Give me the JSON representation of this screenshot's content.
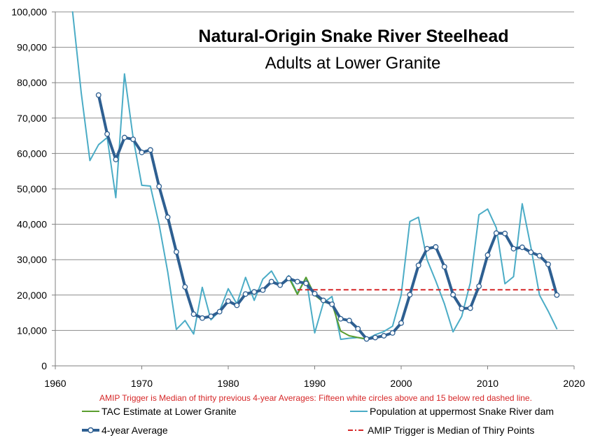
{
  "chart_data": {
    "type": "line",
    "title": "Natural-Origin Snake River Steelhead",
    "subtitle": "Adults at Lower Granite",
    "note": "AMIP Trigger is Median of thirty previous 4-year Averages:  Fifteen white circles above and 15 below red dashed line.",
    "xlim": [
      1960,
      2020
    ],
    "ylim": [
      0,
      100000
    ],
    "x_ticks": [
      1960,
      1970,
      1980,
      1990,
      2000,
      2010,
      2020
    ],
    "y_ticks": [
      0,
      10000,
      20000,
      30000,
      40000,
      50000,
      60000,
      70000,
      80000,
      90000,
      100000
    ],
    "x_tick_labels": [
      "1960",
      "1970",
      "1980",
      "1990",
      "2000",
      "2010",
      "2020"
    ],
    "y_tick_labels": [
      "0",
      "10,000",
      "20,000",
      "30,000",
      "40,000",
      "50,000",
      "60,000",
      "70,000",
      "80,000",
      "90,000",
      "100,000"
    ],
    "grid": "horizontal",
    "legend_position": "bottom",
    "series": [
      {
        "name": "Population at uppermost Snake River dam",
        "color": "#4bacc6",
        "style": "line",
        "x": [
          1962,
          1963,
          1964,
          1965,
          1966,
          1967,
          1968,
          1969,
          1970,
          1971,
          1972,
          1973,
          1974,
          1975,
          1976,
          1977,
          1978,
          1979,
          1980,
          1981,
          1982,
          1983,
          1984,
          1985,
          1986,
          1987,
          1988,
          1989,
          1990,
          1991,
          1992,
          1993,
          1994,
          1995,
          1996,
          1997,
          1998,
          1999,
          2000,
          2001,
          2002,
          2003,
          2004,
          2005,
          2006,
          2007,
          2008,
          2009,
          2010,
          2011,
          2012,
          2013,
          2014,
          2015,
          2016,
          2017,
          2018
        ],
        "y": [
          100000,
          77000,
          58000,
          62500,
          64500,
          47500,
          82500,
          64500,
          51000,
          50800,
          40000,
          26500,
          10300,
          12800,
          9000,
          22200,
          13000,
          15500,
          21800,
          17500,
          25000,
          18500,
          24500,
          26800,
          22500,
          25500,
          20500,
          25000,
          9300,
          17800,
          19600,
          7500,
          7800,
          8000,
          7500,
          8800,
          9700,
          11200,
          20000,
          40800,
          42000,
          30000,
          24000,
          17500,
          9600,
          14000,
          23500,
          42700,
          44300,
          39000,
          23200,
          25200,
          45800,
          33500,
          20000,
          15500,
          10500
        ]
      },
      {
        "name": "TAC Estimate at Lower Granite",
        "color": "#5a9e2f",
        "style": "line",
        "x": [
          1987,
          1988,
          1989,
          1990,
          1991,
          1992,
          1993,
          1994,
          1995,
          1996
        ],
        "y": [
          25000,
          20200,
          25000,
          20000,
          18000,
          17600,
          9800,
          8500,
          8000,
          7600
        ]
      },
      {
        "name": "4-year Average",
        "color": "#2e5f91",
        "style": "line-marker",
        "x": [
          1965,
          1966,
          1967,
          1968,
          1969,
          1970,
          1971,
          1972,
          1973,
          1974,
          1975,
          1976,
          1977,
          1978,
          1979,
          1980,
          1981,
          1982,
          1983,
          1984,
          1985,
          1986,
          1987,
          1988,
          1989,
          1990,
          1991,
          1992,
          1993,
          1994,
          1995,
          1996,
          1997,
          1998,
          1999,
          2000,
          2001,
          2002,
          2003,
          2004,
          2005,
          2006,
          2007,
          2008,
          2009,
          2010,
          2011,
          2012,
          2013,
          2014,
          2015,
          2016,
          2017,
          2018
        ],
        "y": [
          76500,
          65500,
          58300,
          64500,
          64000,
          60300,
          61000,
          50700,
          42000,
          32200,
          22300,
          14600,
          13500,
          14000,
          15300,
          18300,
          17100,
          20300,
          20900,
          21400,
          23800,
          22800,
          24700,
          23800,
          23300,
          20400,
          18500,
          17400,
          13300,
          12800,
          10500,
          7600,
          8000,
          8500,
          9300,
          12100,
          20100,
          28400,
          33100,
          33600,
          28000,
          20100,
          16200,
          16300,
          22500,
          31300,
          37500,
          37400,
          33100,
          33500,
          32100,
          31100,
          28700,
          20000
        ]
      },
      {
        "name": "AMIP Trigger is Median of Thiry Points",
        "color": "#d62728",
        "style": "dashed",
        "x": [
          1988,
          2018
        ],
        "y": [
          21500,
          21500
        ]
      }
    ]
  },
  "legend": [
    {
      "label": "TAC Estimate at Lower Granite",
      "style": "line",
      "color": "#5a9e2f"
    },
    {
      "label": "Population at uppermost Snake River dam",
      "style": "line",
      "color": "#4bacc6"
    },
    {
      "label": "4-year Average",
      "style": "line-marker",
      "color": "#2e5f91"
    },
    {
      "label": "AMIP Trigger is Median of Thiry Points",
      "style": "dashed",
      "color": "#d62728"
    }
  ]
}
